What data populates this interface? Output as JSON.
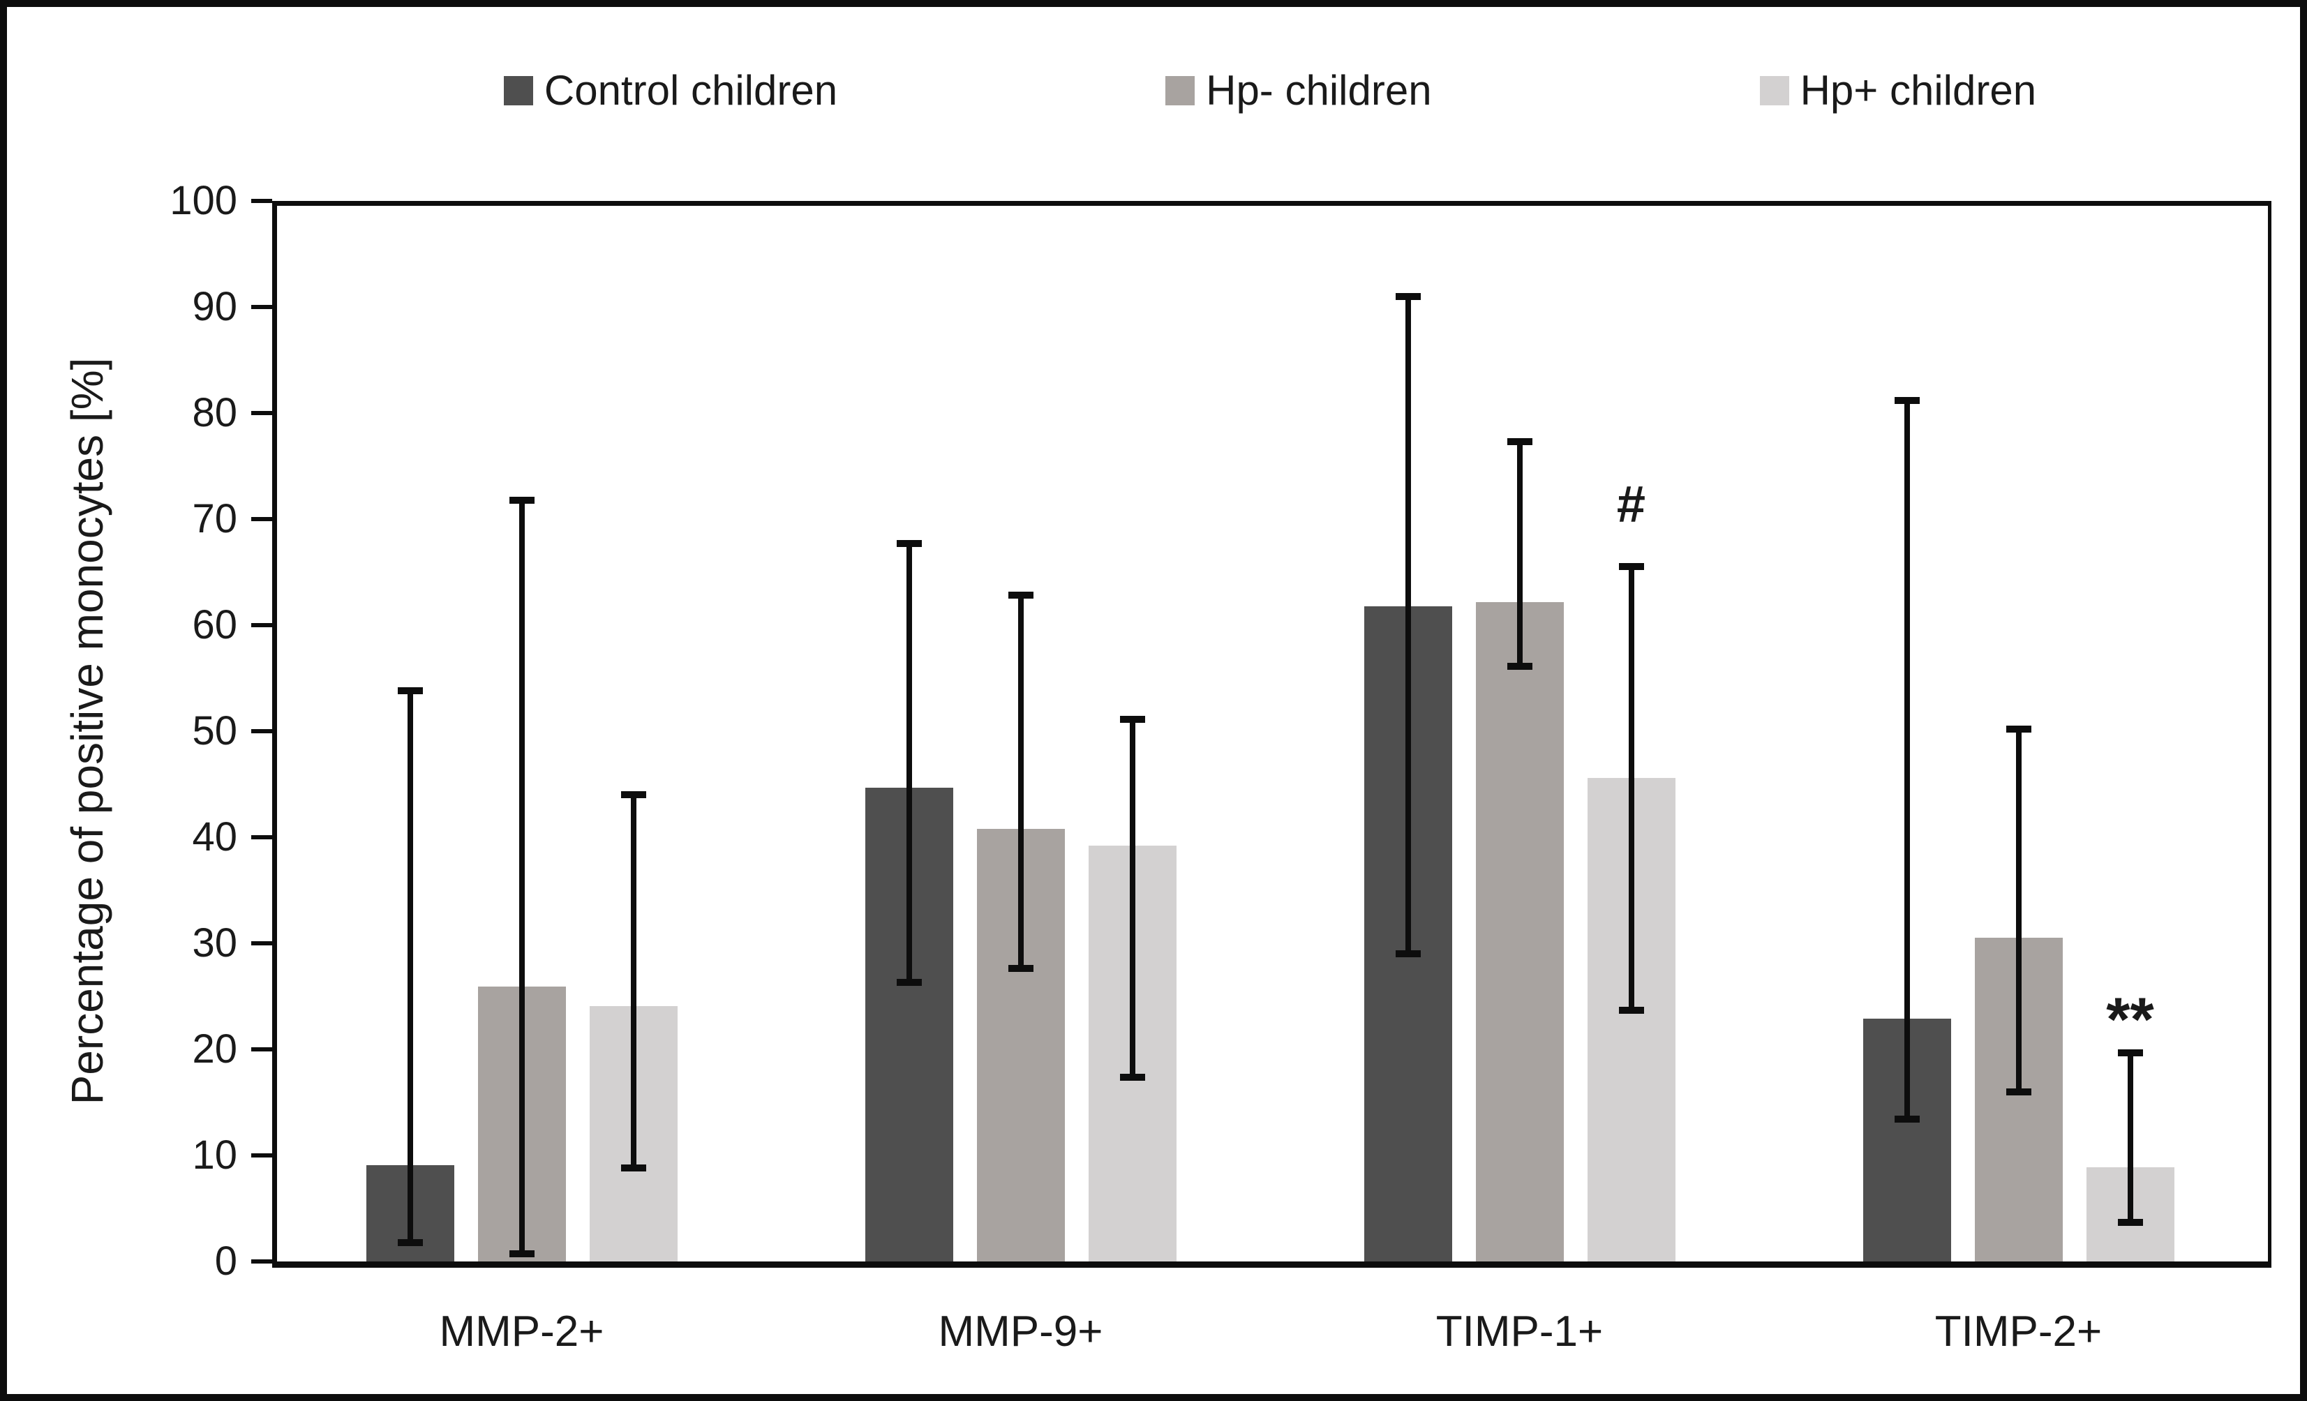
{
  "figure": {
    "background": "#ffffff",
    "frame_color": "#0d0d0d"
  },
  "legend": {
    "position": "top",
    "items": [
      {
        "label": "Control children",
        "color": "#4f4f4f"
      },
      {
        "label": "Hp- children",
        "color": "#a8a3a0"
      },
      {
        "label": "Hp+ children",
        "color": "#d3d1d1"
      }
    ]
  },
  "chart_data": {
    "type": "bar",
    "title": "",
    "categories": [
      "MMP-2+",
      "MMP-9+",
      "TIMP-1+",
      "TIMP-2+"
    ],
    "series": [
      {
        "name": "Control children",
        "color": "#4f4f4f",
        "values": [
          9.1,
          44.7,
          61.8,
          22.9
        ],
        "error_cap_top": [
          53.8,
          67.7,
          91.0,
          81.2
        ],
        "error_cap_bottom": [
          1.8,
          26.3,
          29.0,
          13.4
        ]
      },
      {
        "name": "Hp- children",
        "color": "#a8a3a0",
        "values": [
          25.9,
          40.8,
          62.2,
          30.5
        ],
        "error_cap_top": [
          71.8,
          62.8,
          77.3,
          50.2
        ],
        "error_cap_bottom": [
          0.7,
          27.6,
          56.1,
          16.0
        ]
      },
      {
        "name": "Hp+ children",
        "color": "#d3d1d1",
        "values": [
          24.1,
          39.2,
          45.6,
          8.9
        ],
        "error_cap_top": [
          44.0,
          51.1,
          65.5,
          19.7
        ],
        "error_cap_bottom": [
          8.8,
          17.4,
          23.7,
          3.7
        ]
      }
    ],
    "xlabel": "",
    "ylabel": "Percentage of positive monocytes [%]",
    "ylim": [
      0,
      100
    ],
    "yticks": [
      0,
      10,
      20,
      30,
      40,
      50,
      60,
      70,
      80,
      90,
      100
    ],
    "grid": false,
    "legend_position": "top-center",
    "error_bars": "asymmetric, caps at absolute y-values",
    "annotations": [
      {
        "text": "#",
        "category": "TIMP-1+",
        "series": "Hp+ children",
        "y": 71.4
      },
      {
        "text": "**",
        "category": "TIMP-2+",
        "series": "Hp+ children",
        "y": 22.8
      }
    ]
  }
}
